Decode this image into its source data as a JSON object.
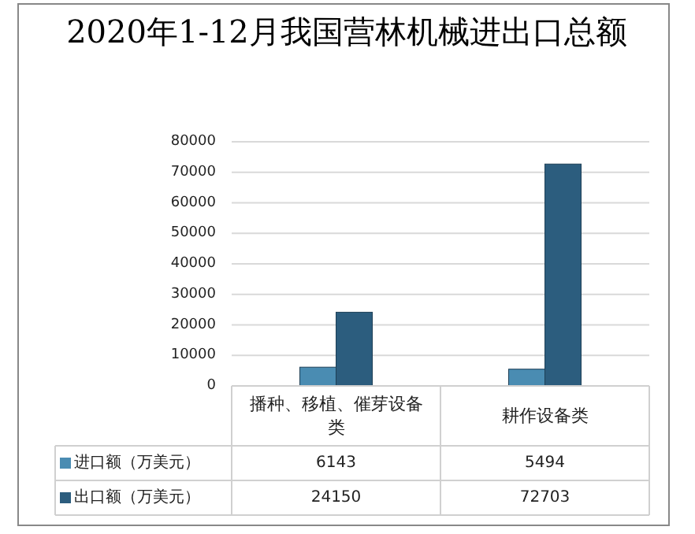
{
  "chart_data": {
    "type": "bar",
    "title": "2020年1-12月我国营林机械进出口总额",
    "categories": [
      "播种、移植、催芽设备类",
      "耕作设备类"
    ],
    "series": [
      {
        "name": "进口额（万美元）",
        "color": "#4a8cb2",
        "values": [
          6143,
          5494
        ]
      },
      {
        "name": "出口额（万美元）",
        "color": "#2c5d7e",
        "values": [
          24150,
          72703
        ]
      }
    ],
    "ylim": [
      0,
      80000
    ],
    "yticks": [
      0,
      10000,
      20000,
      30000,
      40000,
      50000,
      60000,
      70000,
      80000
    ],
    "grid": "y",
    "legend": "bottom",
    "data_labels": true
  }
}
